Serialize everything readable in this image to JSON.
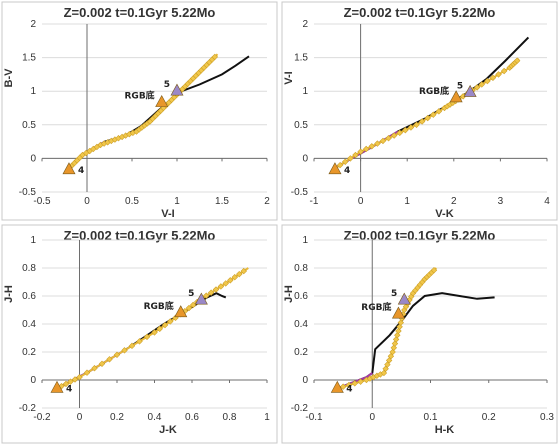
{
  "colors": {
    "model_track": "#e8b93a",
    "model_track_marker": "#f0c64a",
    "obs_track": "#111111",
    "obs_track_highlight": "#a23aa6",
    "point_4": "#e8962a",
    "point_rgb": "#e8962a",
    "point_5": "#9a88c8"
  },
  "chart_data": [
    {
      "type": "line",
      "title": "Z=0.002  t=0.1Gyr 5.22Mo",
      "xlabel": "V-I",
      "ylabel": "B-V",
      "xlim": [
        -0.5,
        2
      ],
      "ylim": [
        -0.5,
        2
      ],
      "xticks": [
        "-0.5",
        "0",
        "0.5",
        "1",
        "1.5",
        "2"
      ],
      "yticks": [
        "-0.5",
        "0",
        "0.5",
        "1",
        "1.5",
        "2"
      ],
      "grid": "horizontal",
      "series": [
        {
          "values": [
            [
              -0.2,
              -0.15
            ],
            [
              -0.05,
              0.05
            ],
            [
              0.15,
              0.2
            ],
            [
              0.35,
              0.3
            ],
            [
              0.55,
              0.4
            ],
            [
              0.7,
              0.55
            ],
            [
              0.85,
              0.75
            ],
            [
              1.0,
              0.95
            ],
            [
              1.15,
              1.15
            ],
            [
              1.3,
              1.35
            ],
            [
              1.45,
              1.55
            ]
          ]
        },
        {
          "values": [
            [
              -0.18,
              -0.13
            ],
            [
              0.0,
              0.1
            ],
            [
              0.2,
              0.25
            ],
            [
              0.4,
              0.32
            ],
            [
              0.6,
              0.48
            ],
            [
              0.8,
              0.72
            ],
            [
              0.95,
              0.9
            ],
            [
              1.05,
              1.0
            ],
            [
              1.25,
              1.1
            ],
            [
              1.5,
              1.25
            ],
            [
              1.65,
              1.38
            ],
            [
              1.8,
              1.52
            ]
          ]
        }
      ],
      "points": [
        {
          "label": "4",
          "x": -0.2,
          "y": -0.17,
          "label_side": "right"
        },
        {
          "label": "RGB底",
          "x": 0.83,
          "y": 0.83,
          "label_side": "left"
        },
        {
          "label": "5",
          "x": 1.0,
          "y": 1.0,
          "label_side": "left"
        }
      ]
    },
    {
      "type": "line",
      "title": "Z=0.002  t=0.1Gyr 5.22Mo",
      "xlabel": "V-K",
      "ylabel": "V-I",
      "xlim": [
        -1,
        4
      ],
      "ylim": [
        -0.5,
        2
      ],
      "xticks": [
        "-1",
        "0",
        "1",
        "2",
        "3",
        "4"
      ],
      "yticks": [
        "-0.5",
        "0",
        "0.5",
        "1",
        "1.5",
        "2"
      ],
      "grid": "horizontal",
      "series": [
        {
          "values": [
            [
              -0.55,
              -0.15
            ],
            [
              0.0,
              0.1
            ],
            [
              0.6,
              0.3
            ],
            [
              1.2,
              0.5
            ],
            [
              1.8,
              0.75
            ],
            [
              2.1,
              0.88
            ],
            [
              2.6,
              1.1
            ],
            [
              3.2,
              1.35
            ],
            [
              3.4,
              1.48
            ]
          ]
        },
        {
          "values": [
            [
              -0.5,
              -0.12
            ],
            [
              0.2,
              0.15
            ],
            [
              0.8,
              0.4
            ],
            [
              1.4,
              0.6
            ],
            [
              2.0,
              0.85
            ],
            [
              2.3,
              0.98
            ],
            [
              2.7,
              1.18
            ],
            [
              3.1,
              1.45
            ],
            [
              3.6,
              1.8
            ]
          ]
        }
      ],
      "points": [
        {
          "label": "4",
          "x": -0.55,
          "y": -0.17,
          "label_side": "right"
        },
        {
          "label": "RGB底",
          "x": 2.05,
          "y": 0.9,
          "label_side": "left"
        },
        {
          "label": "5",
          "x": 2.35,
          "y": 0.98,
          "label_side": "left"
        }
      ]
    },
    {
      "type": "line",
      "title": "Z=0.002  t=0.1Gyr 5.22Mo",
      "xlabel": "J-K",
      "ylabel": "J-H",
      "xlim": [
        -0.2,
        1
      ],
      "ylim": [
        -0.2,
        1
      ],
      "xticks": [
        "-0.2",
        "0",
        "0.2",
        "0.4",
        "0.6",
        "0.8",
        "1"
      ],
      "yticks": [
        "-0.2",
        "0",
        "0.2",
        "0.4",
        "0.6",
        "0.8",
        "1"
      ],
      "grid": "horizontal",
      "series": [
        {
          "values": [
            [
              -0.12,
              -0.06
            ],
            [
              0.0,
              0.02
            ],
            [
              0.2,
              0.18
            ],
            [
              0.4,
              0.34
            ],
            [
              0.54,
              0.47
            ],
            [
              0.65,
              0.58
            ],
            [
              0.78,
              0.69
            ],
            [
              0.9,
              0.8
            ]
          ]
        },
        {
          "values": [
            [
              -0.12,
              -0.06
            ],
            [
              0.05,
              0.06
            ],
            [
              0.25,
              0.22
            ],
            [
              0.45,
              0.4
            ],
            [
              0.6,
              0.52
            ],
            [
              0.68,
              0.59
            ],
            [
              0.73,
              0.62
            ],
            [
              0.76,
              0.6
            ],
            [
              0.78,
              0.59
            ]
          ]
        }
      ],
      "points": [
        {
          "label": "4",
          "x": -0.12,
          "y": -0.06,
          "label_side": "right"
        },
        {
          "label": "RGB底",
          "x": 0.54,
          "y": 0.48,
          "label_side": "left"
        },
        {
          "label": "5",
          "x": 0.65,
          "y": 0.57,
          "label_side": "left"
        }
      ]
    },
    {
      "type": "line",
      "title": "Z=0.002  t=0.1Gyr 5.22Mo",
      "xlabel": "H-K",
      "ylabel": "J-H",
      "xlim": [
        -0.1,
        0.3
      ],
      "ylim": [
        -0.2,
        1
      ],
      "xticks": [
        "-0.1",
        "0",
        "0.1",
        "0.2",
        "0.3"
      ],
      "yticks": [
        "-0.2",
        "0",
        "0.2",
        "0.4",
        "0.6",
        "0.8",
        "1"
      ],
      "grid": "horizontal",
      "series": [
        {
          "values": [
            [
              -0.06,
              -0.06
            ],
            [
              -0.01,
              0.0
            ],
            [
              0.02,
              0.05
            ],
            [
              0.035,
              0.2
            ],
            [
              0.045,
              0.35
            ],
            [
              0.055,
              0.5
            ],
            [
              0.07,
              0.62
            ],
            [
              0.09,
              0.72
            ],
            [
              0.11,
              0.8
            ]
          ]
        },
        {
          "values": [
            [
              -0.06,
              -0.06
            ],
            [
              -0.01,
              0.02
            ],
            [
              0.0,
              0.05
            ],
            [
              0.005,
              0.22
            ],
            [
              0.03,
              0.32
            ],
            [
              0.05,
              0.42
            ],
            [
              0.07,
              0.53
            ],
            [
              0.09,
              0.6
            ],
            [
              0.12,
              0.62
            ],
            [
              0.15,
              0.6
            ],
            [
              0.18,
              0.58
            ],
            [
              0.21,
              0.59
            ]
          ]
        }
      ],
      "points": [
        {
          "label": "4",
          "x": -0.06,
          "y": -0.06,
          "label_side": "right"
        },
        {
          "label": "RGB底",
          "x": 0.045,
          "y": 0.47,
          "label_side": "left"
        },
        {
          "label": "5",
          "x": 0.055,
          "y": 0.57,
          "label_side": "left"
        }
      ]
    }
  ]
}
